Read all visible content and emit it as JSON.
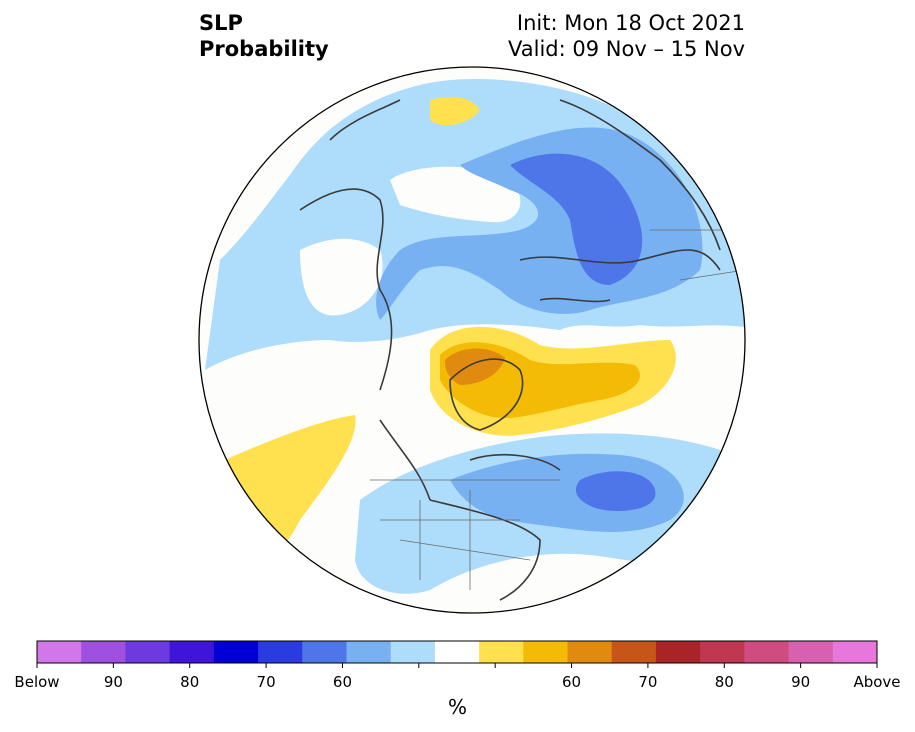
{
  "title": {
    "line1": "SLP",
    "line2": "Probability",
    "init": "Init: Mon 18 Oct 2021",
    "valid": "Valid: 09 Nov – 15 Nov"
  },
  "colorbar": {
    "unit": "%",
    "colors": [
      "#d277ea",
      "#a050de",
      "#6c3ade",
      "#3e15d9",
      "#0000d6",
      "#2a3ce0",
      "#4f76e8",
      "#77b1f1",
      "#aedcfb",
      "#ffffff",
      "#ffe150",
      "#f3bb05",
      "#e08b0f",
      "#c7551a",
      "#aa2326",
      "#c13751",
      "#cf4c80",
      "#d860b0",
      "#e777dd"
    ],
    "ticks": [
      "Below",
      "90",
      "80",
      "70",
      "60",
      "",
      "",
      "60",
      "70",
      "80",
      "90",
      "Above"
    ]
  },
  "map": {
    "legend_colors": {
      "light_blue": "#aedcfb",
      "mid_blue": "#77b1f1",
      "blue": "#4f76e8",
      "yellow": "#ffe150",
      "gold": "#f3bb05",
      "orange": "#e08b0f",
      "neutral": "#fdfdfb"
    }
  }
}
